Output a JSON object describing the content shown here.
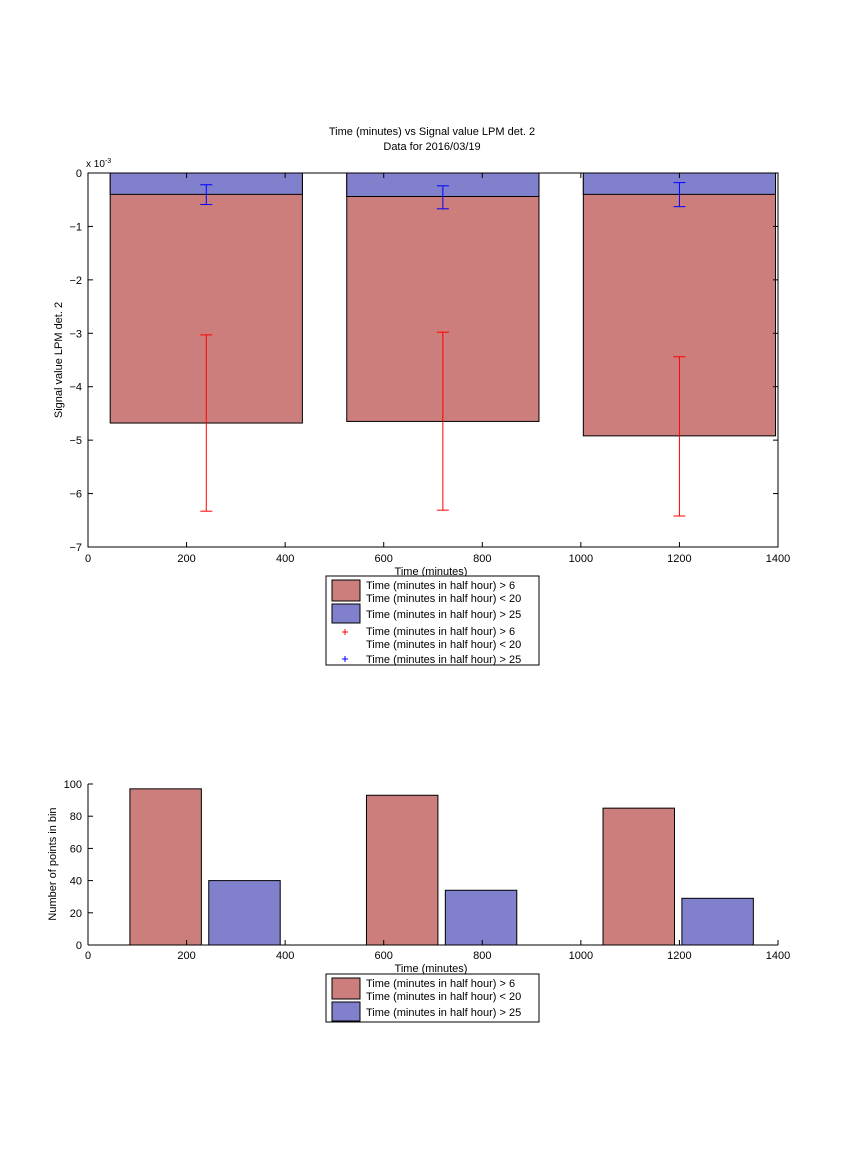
{
  "chart_data": [
    {
      "type": "bar",
      "title": "Time (minutes) vs Signal value LPM det. 2",
      "subtitle": "Data for 2016/03/19",
      "xlabel": "Time (minutes)",
      "ylabel": "Signal value LPM det. 2",
      "exponent_label": "x 10",
      "exponent_power": "-3",
      "xlim": [
        0,
        1400
      ],
      "ylim": [
        -7,
        0
      ],
      "y_scale_factor": 0.001,
      "xticks": [
        "0",
        "200",
        "400",
        "600",
        "800",
        "1000",
        "1200",
        "1400"
      ],
      "yticks": [
        "0",
        "−1",
        "−2",
        "−3",
        "−4",
        "−5",
        "−6",
        "−7"
      ],
      "grid": false,
      "legend_position": "bottom-outside",
      "categories": [
        240,
        720,
        1200
      ],
      "bar_span": [
        [
          45,
          435
        ],
        [
          525,
          915
        ],
        [
          1005,
          1395
        ]
      ],
      "series": [
        {
          "name": "Time (minutes in half hour) > 6\nTime (minutes in half hour) < 20",
          "color": "#cc7e7c",
          "values": [
            -4.68,
            -4.65,
            -4.92
          ],
          "error_center": [
            -4.68,
            -4.65,
            -4.92
          ],
          "error_low": [
            -6.33,
            -6.31,
            -6.42
          ],
          "error_high": [
            -3.03,
            -2.98,
            -3.44
          ],
          "error_color": "#ff0000"
        },
        {
          "name": "Time (minutes in half hour) > 25",
          "color": "#8080cc",
          "values": [
            -0.4,
            -0.44,
            -0.4
          ],
          "error_center": [
            -0.4,
            -0.44,
            -0.4
          ],
          "error_low": [
            -0.59,
            -0.67,
            -0.63
          ],
          "error_high": [
            -0.22,
            -0.24,
            -0.18
          ],
          "error_color": "#0000ff"
        }
      ],
      "legend": [
        {
          "kind": "patch",
          "lines": [
            "Time (minutes in half hour) > 6",
            "Time (minutes in half hour) < 20"
          ],
          "color": "#cc7e7c"
        },
        {
          "kind": "patch",
          "lines": [
            "Time (minutes in half hour) > 25"
          ],
          "color": "#8080cc"
        },
        {
          "kind": "marker",
          "lines": [
            "Time (minutes in half hour) > 6",
            "Time (minutes in half hour) < 20"
          ],
          "color": "#ff0000"
        },
        {
          "kind": "marker",
          "lines": [
            "Time (minutes in half hour) > 25"
          ],
          "color": "#0000ff"
        }
      ]
    },
    {
      "type": "bar",
      "title": "",
      "xlabel": "Time (minutes)",
      "ylabel": "Number of points in bin",
      "xlim": [
        0,
        1400
      ],
      "ylim": [
        0,
        100
      ],
      "xticks": [
        "0",
        "200",
        "400",
        "600",
        "800",
        "1000",
        "1200",
        "1400"
      ],
      "yticks": [
        "0",
        "20",
        "40",
        "60",
        "80",
        "100"
      ],
      "grid": false,
      "legend_position": "bottom-outside",
      "categories": [
        240,
        720,
        1200
      ],
      "series": [
        {
          "name": "Time (minutes in half hour) > 6\nTime (minutes in half hour) < 20",
          "color": "#cc7e7c",
          "values": [
            97,
            93,
            85
          ],
          "bar_span": [
            [
              85,
              230
            ],
            [
              565,
              710
            ],
            [
              1045,
              1190
            ]
          ]
        },
        {
          "name": "Time (minutes in half hour) > 25",
          "color": "#8080cc",
          "values": [
            40,
            34,
            29
          ],
          "bar_span": [
            [
              245,
              390
            ],
            [
              725,
              870
            ],
            [
              1205,
              1350
            ]
          ]
        }
      ],
      "legend": [
        {
          "kind": "patch",
          "lines": [
            "Time (minutes in half hour) > 6",
            "Time (minutes in half hour) < 20"
          ],
          "color": "#cc7e7c"
        },
        {
          "kind": "patch",
          "lines": [
            "Time (minutes in half hour) > 25"
          ],
          "color": "#8080cc"
        }
      ]
    }
  ]
}
